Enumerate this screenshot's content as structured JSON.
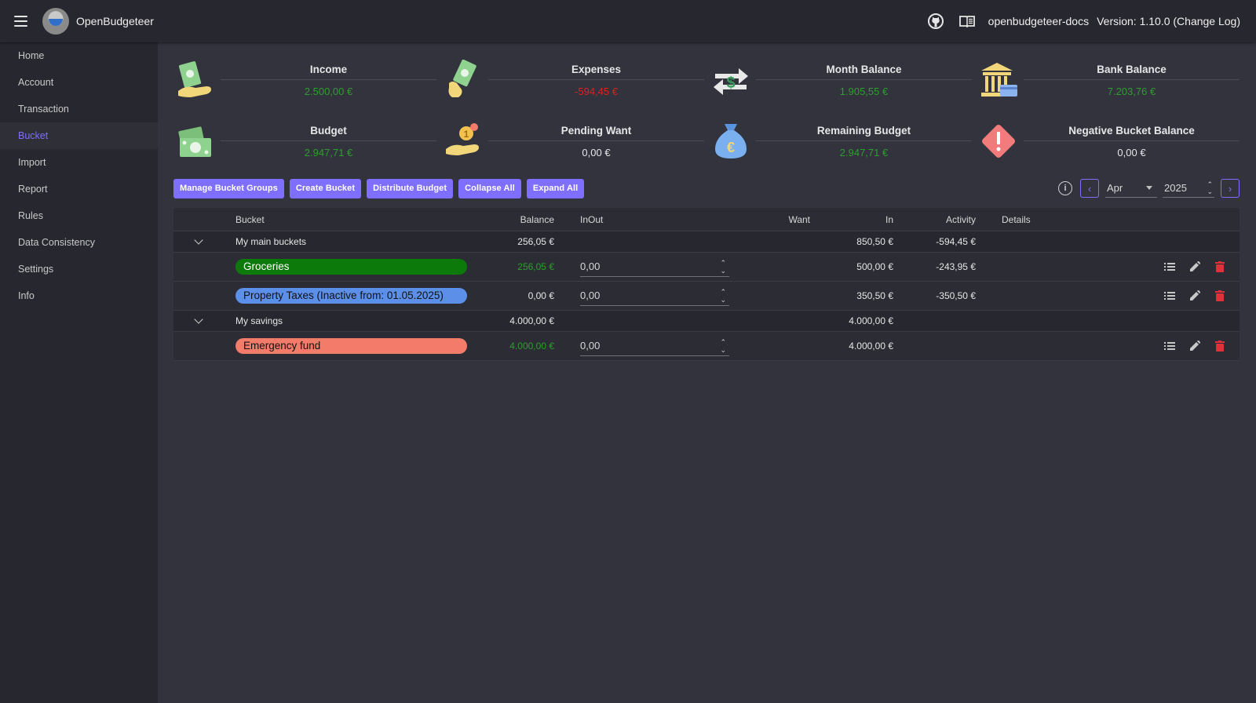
{
  "app": {
    "title": "OpenBudgeteer",
    "docs_link": "openbudgeteer-docs",
    "version": "Version: 1.10.0 (Change Log)"
  },
  "sidebar": {
    "items": [
      {
        "label": "Home"
      },
      {
        "label": "Account"
      },
      {
        "label": "Transaction"
      },
      {
        "label": "Bucket",
        "active": true
      },
      {
        "label": "Import"
      },
      {
        "label": "Report"
      },
      {
        "label": "Rules"
      },
      {
        "label": "Data Consistency"
      },
      {
        "label": "Settings"
      },
      {
        "label": "Info"
      }
    ]
  },
  "stats": {
    "income": {
      "label": "Income",
      "value": "2.500,00 €"
    },
    "expenses": {
      "label": "Expenses",
      "value": "-594,45 €"
    },
    "month_balance": {
      "label": "Month Balance",
      "value": "1.905,55 €"
    },
    "bank_balance": {
      "label": "Bank Balance",
      "value": "7.203,76 €"
    },
    "budget": {
      "label": "Budget",
      "value": "2.947,71 €"
    },
    "pending_want": {
      "label": "Pending Want",
      "value": "0,00 €"
    },
    "remaining_budget": {
      "label": "Remaining Budget",
      "value": "2.947,71 €"
    },
    "negative_bucket_balance": {
      "label": "Negative Bucket Balance",
      "value": "0,00 €"
    }
  },
  "toolbar": {
    "manage_groups": "Manage Bucket Groups",
    "create_bucket": "Create Bucket",
    "distribute_budget": "Distribute Budget",
    "collapse_all": "Collapse All",
    "expand_all": "Expand All",
    "month": "Apr",
    "year": "2025"
  },
  "table": {
    "headers": {
      "bucket": "Bucket",
      "balance": "Balance",
      "inout": "InOut",
      "want": "Want",
      "in": "In",
      "activity": "Activity",
      "details": "Details"
    },
    "groups": [
      {
        "name": "My main buckets",
        "balance": "256,05 €",
        "in": "850,50 €",
        "activity": "-594,45 €",
        "buckets": [
          {
            "name": "Groceries",
            "color": "#0b7a0b",
            "text_color": "#ffffff",
            "balance": "256,05 €",
            "inout": "0,00",
            "in": "500,00 €",
            "activity": "-243,95 €"
          },
          {
            "name": "Property Taxes (Inactive from: 01.05.2025)",
            "color": "#5b8fe8",
            "text_color": "#111111",
            "balance": "0,00 €",
            "inout": "0,00",
            "in": "350,50 €",
            "activity": "-350,50 €"
          }
        ]
      },
      {
        "name": "My savings",
        "balance": "4.000,00 €",
        "in": "4.000,00 €",
        "activity": "",
        "buckets": [
          {
            "name": "Emergency fund",
            "color": "#f27b6a",
            "text_color": "#111111",
            "balance": "4.000,00 €",
            "inout": "0,00",
            "in": "4.000,00 €",
            "activity": ""
          }
        ]
      }
    ]
  },
  "colors": {
    "accent": "#7e6fff",
    "positive": "#2e9e2e",
    "negative": "#e02020",
    "delete": "#e0303a"
  },
  "icons": [
    "menu-icon",
    "github-icon",
    "book-icon",
    "info-icon",
    "chevron-left-icon",
    "chevron-right-icon",
    "chevron-down-icon",
    "list-icon",
    "pencil-icon",
    "trash-icon"
  ]
}
